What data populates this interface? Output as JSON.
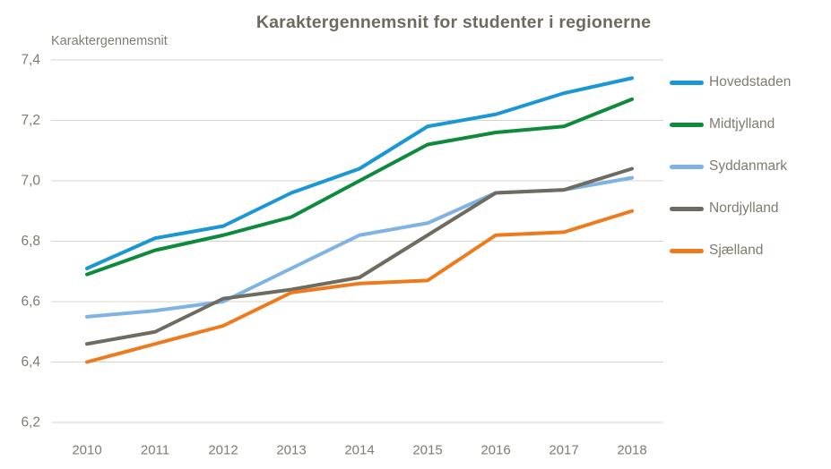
{
  "chart_data": {
    "type": "line",
    "title": "Karaktergennemsnit for studenter i regionerne",
    "y_axis_title": "Karaktergennemsnit",
    "xlabel": "",
    "ylabel": "Karaktergennemsnit",
    "x": [
      2010,
      2011,
      2012,
      2013,
      2014,
      2015,
      2016,
      2017,
      2018
    ],
    "series": [
      {
        "name": "Hovedstaden",
        "color": "#1b97d5",
        "values": [
          6.71,
          6.81,
          6.85,
          6.96,
          7.04,
          7.18,
          7.22,
          7.29,
          7.34
        ]
      },
      {
        "name": "Midtjylland",
        "color": "#0e8a3c",
        "values": [
          6.69,
          6.77,
          6.82,
          6.88,
          7.0,
          7.12,
          7.16,
          7.18,
          7.27
        ]
      },
      {
        "name": "Syddanmark",
        "color": "#7fb3e2",
        "values": [
          6.55,
          6.57,
          6.6,
          6.71,
          6.82,
          6.86,
          6.96,
          6.97,
          7.01
        ]
      },
      {
        "name": "Nordjylland",
        "color": "#6e6c60",
        "values": [
          6.46,
          6.5,
          6.61,
          6.64,
          6.68,
          6.82,
          6.96,
          6.97,
          7.04
        ]
      },
      {
        "name": "Sjælland",
        "color": "#ed7b1e",
        "values": [
          6.4,
          6.46,
          6.52,
          6.63,
          6.66,
          6.67,
          6.82,
          6.83,
          6.9
        ]
      }
    ],
    "ylim": [
      6.2,
      7.4
    ],
    "ytick_step": 0.2,
    "ytick_labels": [
      "7,4",
      "7,2",
      "7,0",
      "6,8",
      "6,6",
      "6,4",
      "6,2"
    ],
    "decimal_separator": ",",
    "grid": true,
    "legend_position": "right"
  },
  "colors": {
    "background": "#ffffff",
    "grid": "#d7d5c9",
    "tick_text": "#7e7c70",
    "title_text": "#6d6b5f"
  }
}
